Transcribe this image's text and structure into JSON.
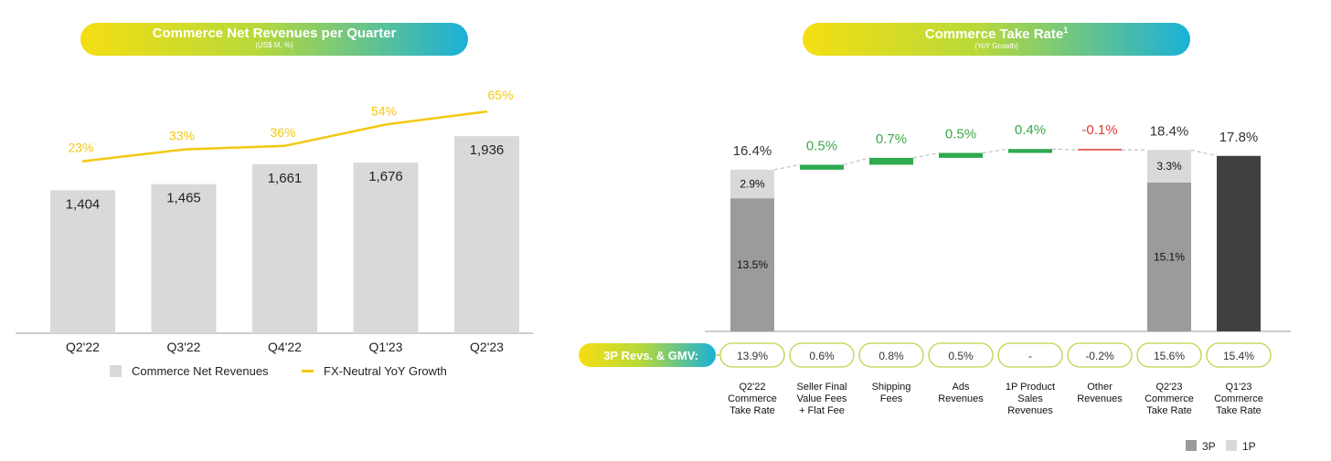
{
  "left": {
    "title": "Commerce Net Revenues per Quarter",
    "subtitle": "(US$ M, %)"
  },
  "right": {
    "title": "Commerce Take Rate",
    "title_sup": "1",
    "subtitle": "(YoY Growth)",
    "row_label": "3P Revs. & GMV:"
  },
  "colors": {
    "bar_gray": "#d9d9d9",
    "line_yellow": "#f2c811",
    "green": "#2faa4f",
    "red": "#e03c31",
    "dark": "#404040",
    "p3": "#9b9b9b",
    "p1": "#d9d9d9",
    "pct_green": "#3aaa46"
  },
  "chart_data": [
    {
      "type": "bar",
      "title": "Commerce Net Revenues per Quarter",
      "subtitle": "(US$ M, %)",
      "categories": [
        "Q2'22",
        "Q3'22",
        "Q4'22",
        "Q1'23",
        "Q2'23"
      ],
      "series": [
        {
          "name": "Commerce Net Revenues",
          "type": "bar",
          "values": [
            1404,
            1465,
            1661,
            1676,
            1936
          ],
          "labels": [
            "1,404",
            "1,465",
            "1,661",
            "1,676",
            "1,936"
          ]
        },
        {
          "name": "FX-Neutral YoY Growth",
          "type": "line",
          "values": [
            23,
            33,
            36,
            54,
            65
          ],
          "labels": [
            "23%",
            "33%",
            "36%",
            "54%",
            "65%"
          ]
        }
      ],
      "legend": "bottom"
    },
    {
      "type": "bar",
      "title": "Commerce Take Rate",
      "subtitle": "(YoY Growth)",
      "steps": [
        {
          "kind": "total",
          "label": "16.4%",
          "p3": 13.5,
          "p1": 2.9,
          "p3_label": "13.5%",
          "p1_label": "2.9%"
        },
        {
          "kind": "delta",
          "value": 0.5,
          "label": "0.5%"
        },
        {
          "kind": "delta",
          "value": 0.7,
          "label": "0.7%"
        },
        {
          "kind": "delta",
          "value": 0.5,
          "label": "0.5%"
        },
        {
          "kind": "delta",
          "value": 0.4,
          "label": "0.4%"
        },
        {
          "kind": "delta",
          "value": -0.1,
          "label": "-0.1%"
        },
        {
          "kind": "total",
          "label": "18.4%",
          "p3": 15.1,
          "p1": 3.3,
          "p3_label": "15.1%",
          "p1_label": "3.3%"
        },
        {
          "kind": "single",
          "value": 17.8,
          "label": "17.8%"
        }
      ],
      "row_values": [
        "13.9%",
        "0.6%",
        "0.8%",
        "0.5%",
        "-",
        "-0.2%",
        "15.6%",
        "15.4%"
      ],
      "categories": [
        [
          "Q2'22",
          "Commerce",
          "Take Rate"
        ],
        [
          "Seller Final",
          "Value Fees",
          "+ Flat Fee"
        ],
        [
          "Shipping",
          "Fees"
        ],
        [
          "Ads",
          "Revenues"
        ],
        [
          "1P Product",
          "Sales",
          "Revenues"
        ],
        [
          "Other",
          "Revenues"
        ],
        [
          "Q2'23",
          "Commerce",
          "Take Rate"
        ],
        [
          "Q1'23",
          "Commerce",
          "Take Rate"
        ]
      ],
      "legend": [
        {
          "name": "3P"
        },
        {
          "name": "1P"
        }
      ]
    }
  ]
}
